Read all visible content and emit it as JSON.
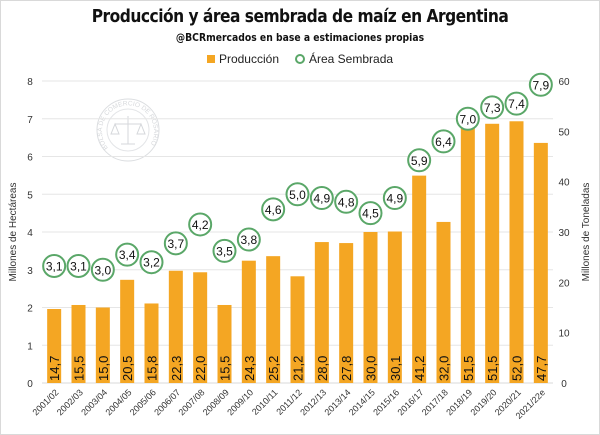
{
  "chart_data": {
    "type": "bar",
    "title": "Producción y área sembrada de maíz en Argentina",
    "subtitle": "@BCRmercados en base a estimaciones propias",
    "legend_position": "top-center",
    "grid": true,
    "categories": [
      "2001/02",
      "2002/03",
      "2003/04",
      "2004/05",
      "2005/06",
      "2006/07",
      "2007/08",
      "2008/09",
      "2009/10",
      "2010/11",
      "2011/12",
      "2012/13",
      "2013/14",
      "2014/15",
      "2015/16",
      "2016/17",
      "2017/18",
      "2018/19",
      "2019/20",
      "2020/21",
      "2021/22e"
    ],
    "series": [
      {
        "name": "Producción",
        "type": "bar",
        "axis": "right",
        "color": "#f4a623",
        "values": [
          14.7,
          15.5,
          15.0,
          20.5,
          15.8,
          22.3,
          22.0,
          15.5,
          24.3,
          25.2,
          21.2,
          28.0,
          27.8,
          30.0,
          30.1,
          41.2,
          32.0,
          51.5,
          51.5,
          52.0,
          47.7
        ],
        "labels": [
          "14,7",
          "15,5",
          "15,0",
          "20,5",
          "15,8",
          "22,3",
          "22,0",
          "15,5",
          "24,3",
          "25,2",
          "21,2",
          "28,0",
          "27,8",
          "30,0",
          "30,1",
          "41,2",
          "32,0",
          "51,5",
          "51,5",
          "52,0",
          "47,7"
        ]
      },
      {
        "name": "Área Sembrada",
        "type": "scatter",
        "axis": "left",
        "color": "#5aa768",
        "values": [
          3.1,
          3.1,
          3.0,
          3.4,
          3.2,
          3.7,
          4.2,
          3.5,
          3.8,
          4.6,
          5.0,
          4.9,
          4.8,
          4.5,
          4.9,
          5.9,
          6.4,
          7.0,
          7.3,
          7.4,
          7.9
        ],
        "labels": [
          "3,1",
          "3,1",
          "3,0",
          "3,4",
          "3,2",
          "3,7",
          "4,2",
          "3,5",
          "3,8",
          "4,6",
          "5,0",
          "4,9",
          "4,8",
          "4,5",
          "4,9",
          "5,9",
          "6,4",
          "7,0",
          "7,3",
          "7,4",
          "7,9"
        ]
      }
    ],
    "y_left": {
      "label": "Millones de Hectáreas",
      "lim": [
        0,
        8
      ],
      "ticks": [
        "0",
        "1",
        "2",
        "3",
        "4",
        "5",
        "6",
        "7",
        "8"
      ]
    },
    "y_right": {
      "label": "Millones de Toneladas",
      "lim": [
        0,
        60
      ],
      "ticks": [
        "0",
        "10",
        "20",
        "30",
        "40",
        "50",
        "60"
      ]
    },
    "watermark": "BOLSA DE COMERCIO DE ROSARIO"
  }
}
